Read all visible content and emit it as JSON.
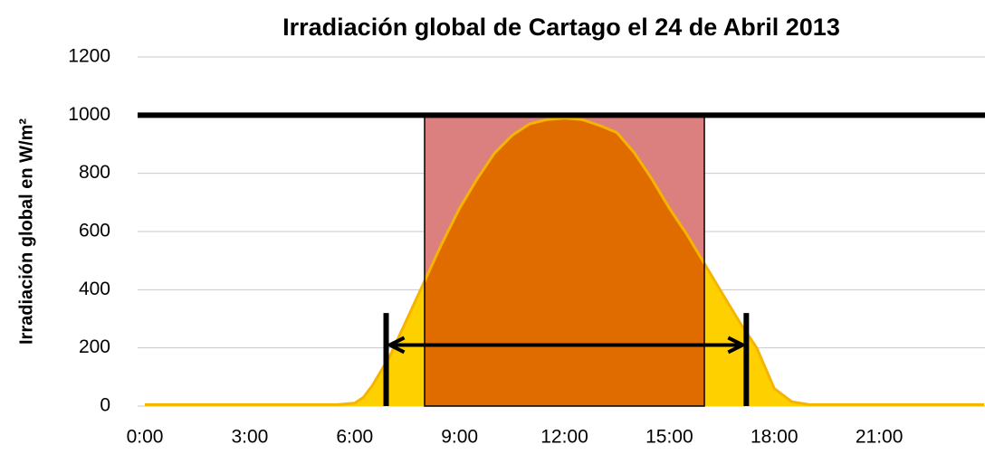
{
  "chart_data": {
    "type": "area",
    "title": "Irradiación global de Cartago el 24 de Abril 2013",
    "y_label": "Irradiación global en W/m²",
    "x": [
      0,
      1,
      2,
      3,
      4,
      5,
      5.5,
      6,
      6.25,
      6.5,
      7,
      7.5,
      8,
      8.5,
      9,
      9.5,
      10,
      10.5,
      11,
      11.5,
      12,
      12.5,
      13,
      13.5,
      14,
      14.5,
      15,
      15.5,
      16,
      16.5,
      17,
      17.5,
      18,
      18.5,
      19,
      20,
      21,
      22,
      23,
      24
    ],
    "values": [
      5,
      5,
      5,
      5,
      5,
      5,
      5,
      10,
      30,
      70,
      170,
      300,
      430,
      560,
      680,
      780,
      870,
      930,
      970,
      985,
      990,
      985,
      965,
      940,
      870,
      780,
      680,
      590,
      490,
      390,
      290,
      200,
      60,
      15,
      5,
      5,
      5,
      5,
      5,
      5
    ],
    "color": "#ffd000",
    "line_color": "#f5b400",
    "peak_color": "#e06c00",
    "threshold": 1000,
    "peak_window": [
      8,
      16
    ],
    "peak_window_color": "#db7f7f",
    "sun_window": [
      6.9,
      17.2
    ],
    "sun_marker_height": 320,
    "arrow_level": 210,
    "xlim": [
      0,
      24
    ],
    "ylim": [
      0,
      1200
    ],
    "xticks": [
      {
        "value": 0,
        "label": "0:00"
      },
      {
        "value": 3,
        "label": "3:00"
      },
      {
        "value": 6,
        "label": "6:00"
      },
      {
        "value": 9,
        "label": "9:00"
      },
      {
        "value": 12,
        "label": "12:00"
      },
      {
        "value": 15,
        "label": "15:00"
      },
      {
        "value": 18,
        "label": "18:00"
      },
      {
        "value": 21,
        "label": "21:00"
      }
    ],
    "yticks": [
      0,
      200,
      400,
      600,
      800,
      1000,
      1200
    ],
    "grid": true
  }
}
